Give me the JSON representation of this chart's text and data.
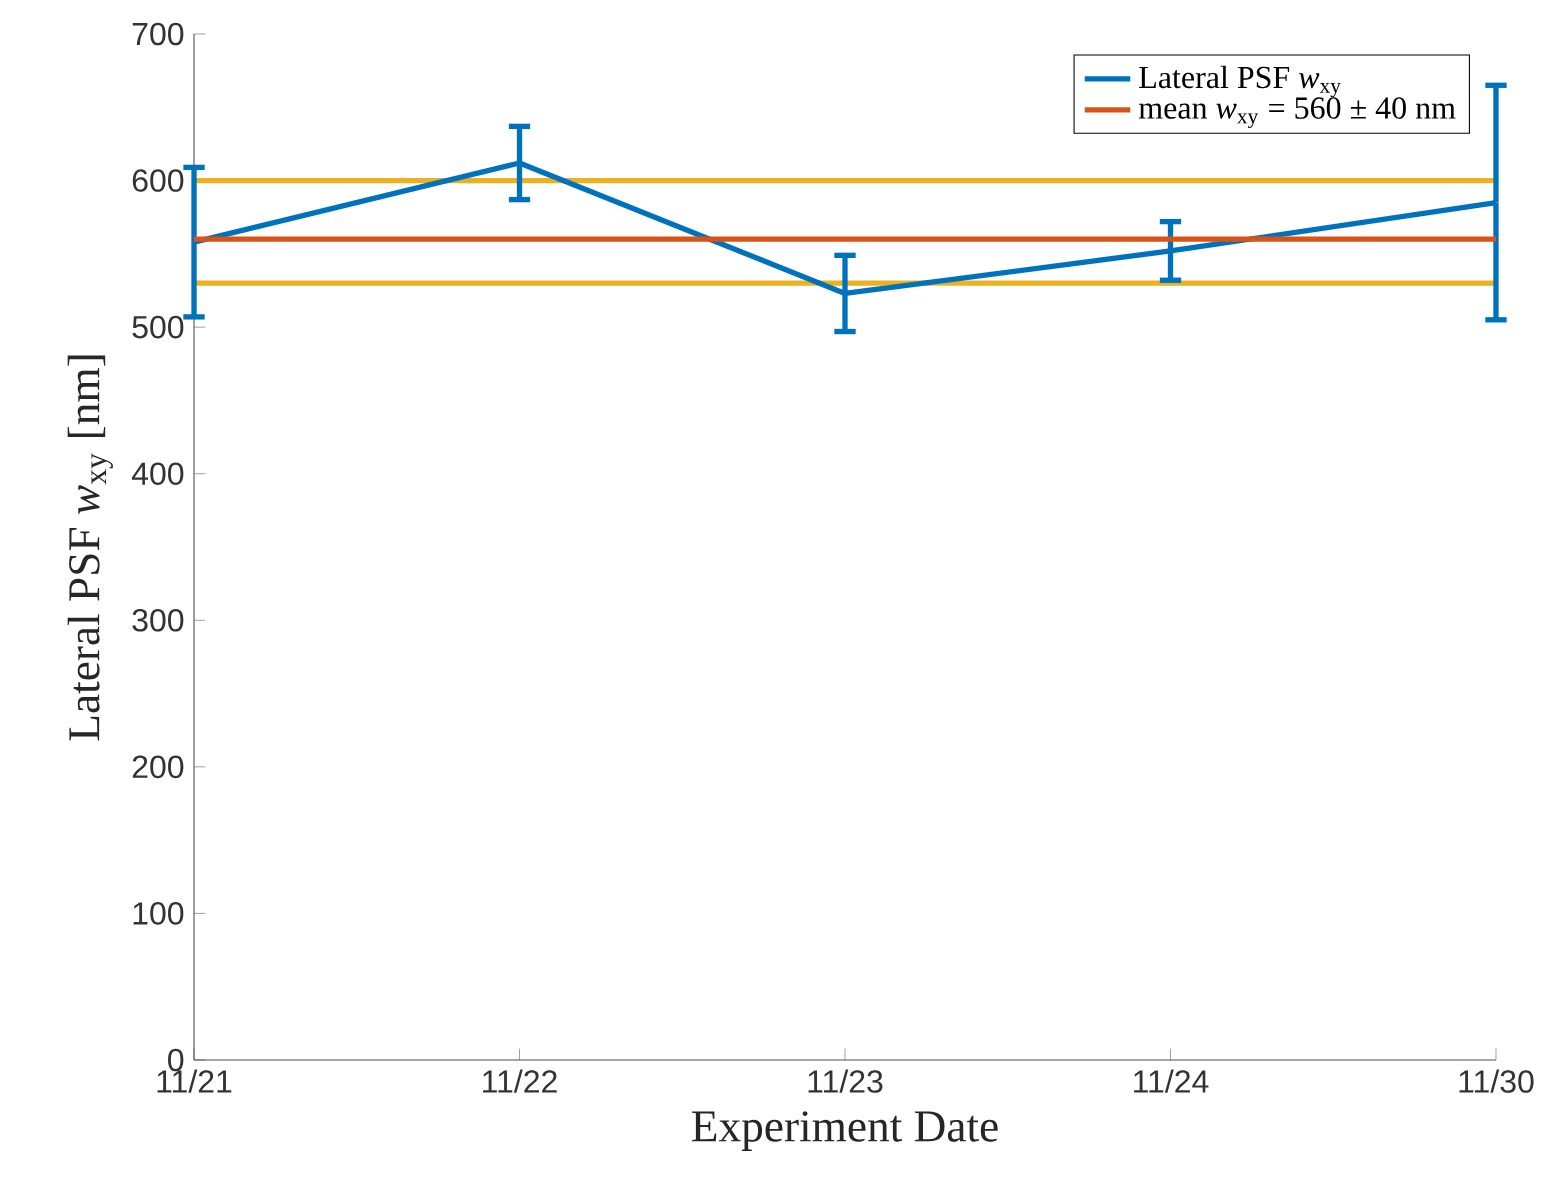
{
  "chart_data": {
    "type": "line",
    "xlabel": "Experiment Date",
    "ylabel": "Lateral PSF *w*$_{xy}$ [nm]",
    "categories": [
      "11/21",
      "11/22",
      "11/23",
      "11/24",
      "11/30"
    ],
    "series": [
      {
        "name": "Lateral PSF *w*$_{xy}$",
        "color": "#0072bd",
        "values": [
          558,
          612,
          523,
          552,
          585
        ],
        "errors": [
          51,
          25,
          26,
          20,
          80
        ]
      }
    ],
    "ref_lines": [
      {
        "axis": "y",
        "value": 560,
        "color": "#d95319",
        "label": "mean *w*$_{xy}$ = 560 ± 40 nm"
      },
      {
        "axis": "y",
        "value": 600,
        "color": "#edb120"
      },
      {
        "axis": "y",
        "value": 530,
        "color": "#edb120"
      }
    ],
    "ylim": [
      0,
      700
    ],
    "yticks": [
      0,
      100,
      200,
      300,
      400,
      500,
      600,
      700
    ],
    "grid": false,
    "legend": "top right",
    "marker": "none",
    "line_style": "solid"
  }
}
